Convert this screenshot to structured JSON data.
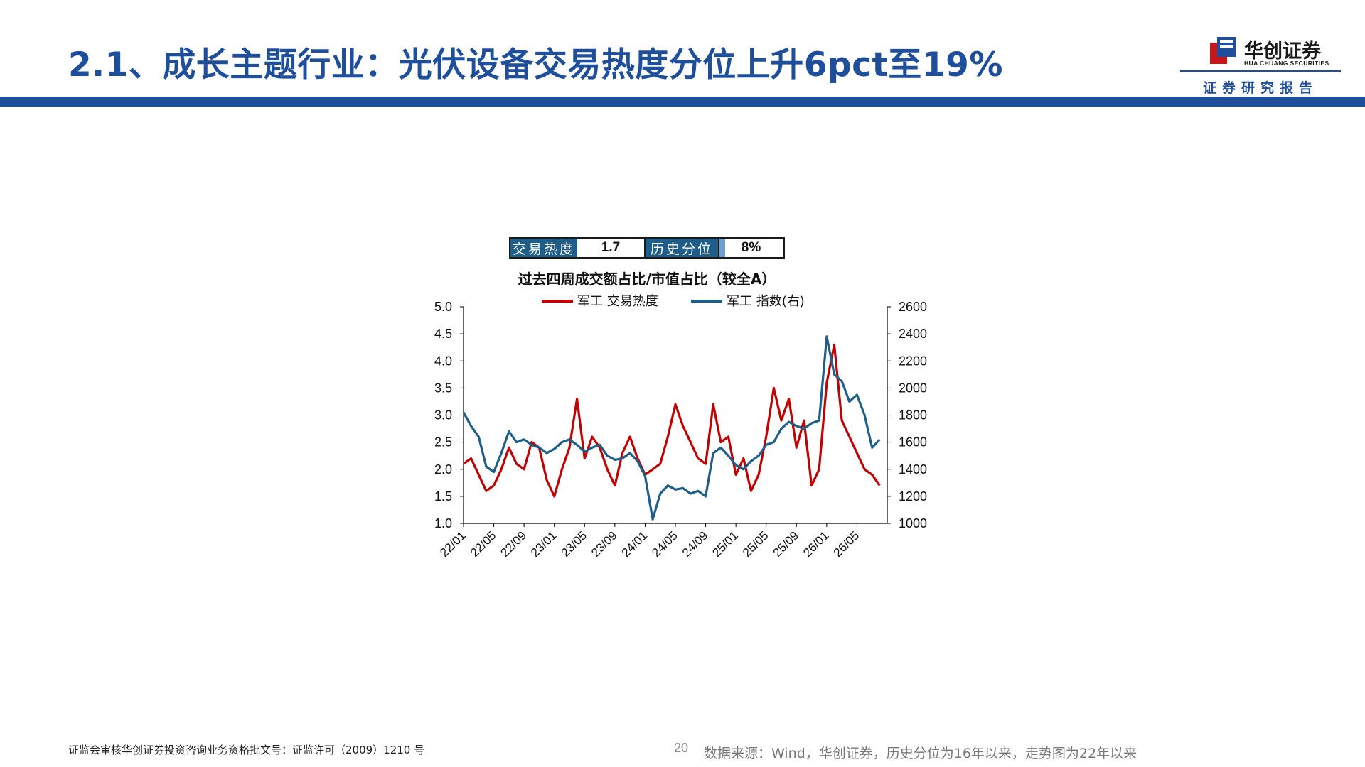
{
  "header": {
    "title": "2.1、成长主题行业：光伏设备交易热度分位上升6pct至19%",
    "logo_name": "华创证券",
    "logo_en": "HUA CHUANG SECURITIES",
    "logo_sub": "证券研究报告",
    "accent_color": "#1f4e9a"
  },
  "stats": {
    "heat_label": "交易热度",
    "heat_value": "1.7",
    "percentile_label": "历史分位",
    "percentile_value": "8%",
    "percentile_fraction": 0.08
  },
  "chart_data": {
    "type": "line",
    "title": "过去四周成交额占比/市值占比（较全A）",
    "legend_position": "top",
    "grid": false,
    "x_tick_labels": [
      "22/01",
      "22/05",
      "22/09",
      "23/01",
      "23/05",
      "23/09",
      "24/01",
      "24/05",
      "24/09",
      "25/01",
      "25/05",
      "25/09",
      "26/01",
      "26/05"
    ],
    "y_left": {
      "ylim": [
        1.0,
        5.0
      ],
      "ticks": [
        "1.0",
        "1.5",
        "2.0",
        "2.5",
        "3.0",
        "3.5",
        "4.0",
        "4.5",
        "5.0"
      ]
    },
    "y_right": {
      "ylim": [
        1000,
        2600
      ],
      "ticks": [
        "1000",
        "1200",
        "1400",
        "1600",
        "1800",
        "2000",
        "2200",
        "2400",
        "2600"
      ]
    },
    "series": [
      {
        "name": "军工 交易热度",
        "axis": "left",
        "color": "#c00000",
        "points": [
          [
            "22/01",
            2.1
          ],
          [
            "22/02",
            2.2
          ],
          [
            "22/03",
            1.9
          ],
          [
            "22/04",
            1.6
          ],
          [
            "22/05",
            1.7
          ],
          [
            "22/06",
            2.0
          ],
          [
            "22/07",
            2.4
          ],
          [
            "22/08",
            2.1
          ],
          [
            "22/09",
            2.0
          ],
          [
            "22/10",
            2.5
          ],
          [
            "22/11",
            2.4
          ],
          [
            "22/12",
            1.8
          ],
          [
            "23/01",
            1.5
          ],
          [
            "23/02",
            2.0
          ],
          [
            "23/03",
            2.4
          ],
          [
            "23/04",
            3.3
          ],
          [
            "23/05",
            2.2
          ],
          [
            "23/06",
            2.6
          ],
          [
            "23/07",
            2.4
          ],
          [
            "23/08",
            2.0
          ],
          [
            "23/09",
            1.7
          ],
          [
            "23/10",
            2.3
          ],
          [
            "23/11",
            2.6
          ],
          [
            "23/12",
            2.2
          ],
          [
            "24/01",
            1.9
          ],
          [
            "24/02",
            2.0
          ],
          [
            "24/03",
            2.1
          ],
          [
            "24/04",
            2.6
          ],
          [
            "24/05",
            3.2
          ],
          [
            "24/06",
            2.8
          ],
          [
            "24/07",
            2.5
          ],
          [
            "24/08",
            2.2
          ],
          [
            "24/09",
            2.1
          ],
          [
            "24/10",
            3.2
          ],
          [
            "24/11",
            2.5
          ],
          [
            "24/12",
            2.6
          ],
          [
            "25/01",
            1.9
          ],
          [
            "25/02",
            2.2
          ],
          [
            "25/03",
            1.6
          ],
          [
            "25/04",
            1.9
          ],
          [
            "25/05",
            2.6
          ],
          [
            "25/06",
            3.5
          ],
          [
            "25/07",
            2.9
          ],
          [
            "25/08",
            3.3
          ],
          [
            "25/09",
            2.4
          ],
          [
            "25/10",
            2.9
          ],
          [
            "25/11",
            1.7
          ],
          [
            "25/12",
            2.0
          ],
          [
            "26/01",
            3.6
          ],
          [
            "26/02",
            4.3
          ],
          [
            "26/03",
            2.9
          ],
          [
            "26/04",
            2.6
          ],
          [
            "26/05",
            2.3
          ],
          [
            "26/06",
            2.0
          ],
          [
            "26/07",
            1.9
          ],
          [
            "26/08",
            1.7
          ]
        ]
      },
      {
        "name": "军工 指数(右)",
        "axis": "right",
        "color": "#1f5e88",
        "points": [
          [
            "22/01",
            1820
          ],
          [
            "22/02",
            1720
          ],
          [
            "22/03",
            1640
          ],
          [
            "22/04",
            1420
          ],
          [
            "22/05",
            1380
          ],
          [
            "22/06",
            1520
          ],
          [
            "22/07",
            1680
          ],
          [
            "22/08",
            1600
          ],
          [
            "22/09",
            1620
          ],
          [
            "22/10",
            1580
          ],
          [
            "22/11",
            1560
          ],
          [
            "22/12",
            1520
          ],
          [
            "23/01",
            1550
          ],
          [
            "23/02",
            1600
          ],
          [
            "23/03",
            1620
          ],
          [
            "23/04",
            1580
          ],
          [
            "23/05",
            1530
          ],
          [
            "23/06",
            1560
          ],
          [
            "23/07",
            1580
          ],
          [
            "23/08",
            1500
          ],
          [
            "23/09",
            1470
          ],
          [
            "23/10",
            1480
          ],
          [
            "23/11",
            1520
          ],
          [
            "23/12",
            1460
          ],
          [
            "24/01",
            1350
          ],
          [
            "24/02",
            1030
          ],
          [
            "24/03",
            1220
          ],
          [
            "24/04",
            1280
          ],
          [
            "24/05",
            1250
          ],
          [
            "24/06",
            1260
          ],
          [
            "24/07",
            1220
          ],
          [
            "24/08",
            1240
          ],
          [
            "24/09",
            1200
          ],
          [
            "24/10",
            1520
          ],
          [
            "24/11",
            1560
          ],
          [
            "24/12",
            1500
          ],
          [
            "25/01",
            1430
          ],
          [
            "25/02",
            1400
          ],
          [
            "25/03",
            1460
          ],
          [
            "25/04",
            1500
          ],
          [
            "25/05",
            1580
          ],
          [
            "25/06",
            1600
          ],
          [
            "25/07",
            1700
          ],
          [
            "25/08",
            1750
          ],
          [
            "25/09",
            1720
          ],
          [
            "25/10",
            1700
          ],
          [
            "25/11",
            1740
          ],
          [
            "25/12",
            1760
          ],
          [
            "26/01",
            2380
          ],
          [
            "26/02",
            2100
          ],
          [
            "26/03",
            2050
          ],
          [
            "26/04",
            1900
          ],
          [
            "26/05",
            1950
          ],
          [
            "26/06",
            1800
          ],
          [
            "26/07",
            1560
          ],
          [
            "26/08",
            1620
          ]
        ]
      }
    ]
  },
  "footer": {
    "license": "证监会审核华创证券投资咨询业务资格批文号：证监许可（2009）1210 号",
    "page_number": "20",
    "source": "数据来源：Wind，华创证券，历史分位为16年以来，走势图为22年以来"
  }
}
